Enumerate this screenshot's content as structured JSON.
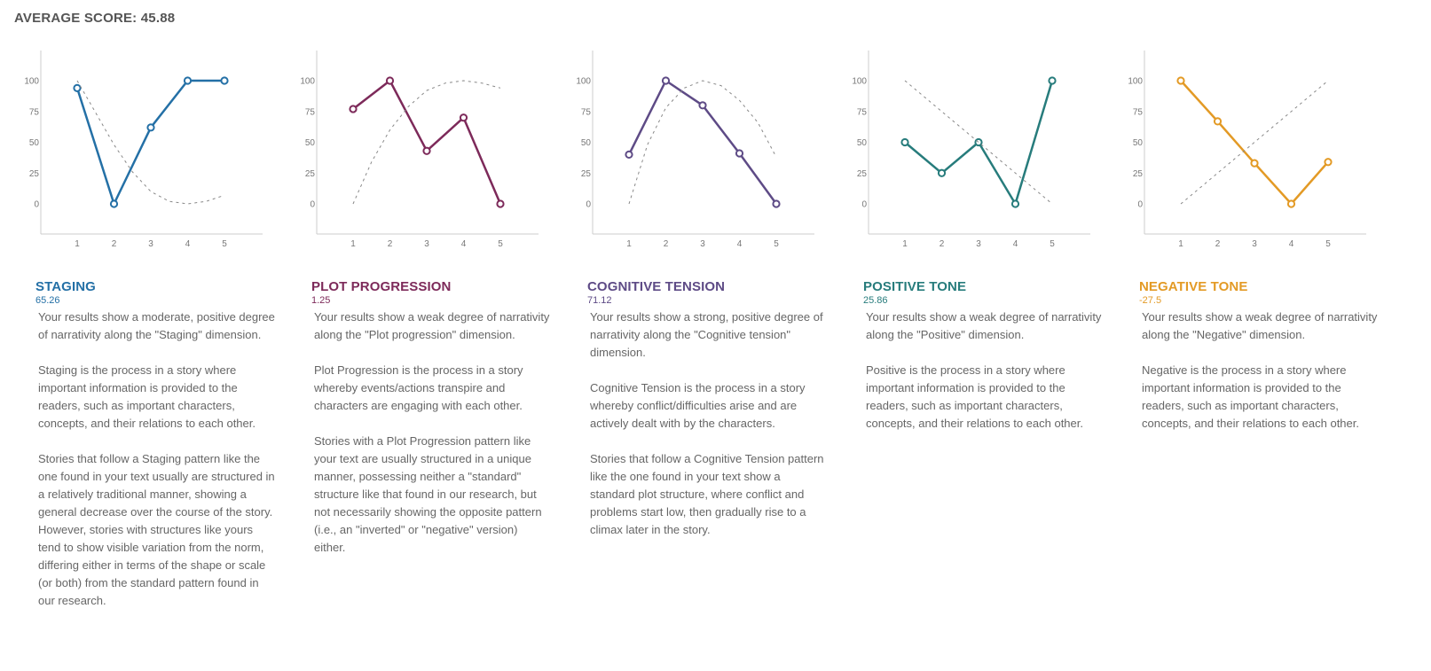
{
  "header": {
    "average_label": "AVERAGE SCORE: 45.88"
  },
  "chart_data": [
    {
      "type": "line",
      "x": [
        1,
        2,
        3,
        4,
        5
      ],
      "series": [
        {
          "values": [
            94,
            0,
            62,
            100,
            100
          ],
          "color": "#2470a6",
          "style": "solid-circles"
        },
        {
          "x": [
            1,
            1.5,
            2,
            2.5,
            3,
            3.5,
            4,
            4.5,
            5
          ],
          "values": [
            100,
            74,
            48,
            26,
            10,
            2,
            0,
            2,
            7
          ],
          "color": "#888888",
          "style": "dashed"
        }
      ],
      "y_ticks": [
        "0",
        "25",
        "50",
        "75",
        "100"
      ],
      "x_ticks": [
        "1",
        "2",
        "3",
        "4",
        "5"
      ],
      "ylim": [
        0,
        100
      ],
      "grid": false
    },
    {
      "type": "line",
      "x": [
        1,
        2,
        3,
        4,
        5
      ],
      "series": [
        {
          "values": [
            77,
            100,
            43,
            70,
            0
          ],
          "color": "#7d2a5a",
          "style": "solid-circles"
        },
        {
          "x": [
            1,
            1.5,
            2,
            2.5,
            3,
            3.5,
            4,
            4.5,
            5
          ],
          "values": [
            0,
            34,
            60,
            79,
            92,
            98,
            100,
            98,
            94
          ],
          "color": "#888888",
          "style": "dashed"
        }
      ],
      "y_ticks": [
        "0",
        "25",
        "50",
        "75",
        "100"
      ],
      "x_ticks": [
        "1",
        "2",
        "3",
        "4",
        "5"
      ],
      "ylim": [
        0,
        100
      ],
      "grid": false
    },
    {
      "type": "line",
      "x": [
        1,
        2,
        3,
        4,
        5
      ],
      "series": [
        {
          "values": [
            40,
            100,
            80,
            41,
            0
          ],
          "color": "#5e4b86",
          "style": "solid-circles"
        },
        {
          "x": [
            1,
            1.5,
            2,
            2.5,
            3,
            3.5,
            4,
            4.5,
            5
          ],
          "values": [
            0,
            48,
            78,
            94,
            100,
            96,
            84,
            66,
            38
          ],
          "color": "#888888",
          "style": "dashed"
        }
      ],
      "y_ticks": [
        "0",
        "25",
        "50",
        "75",
        "100"
      ],
      "x_ticks": [
        "1",
        "2",
        "3",
        "4",
        "5"
      ],
      "ylim": [
        0,
        100
      ],
      "grid": false
    },
    {
      "type": "line",
      "x": [
        1,
        2,
        3,
        4,
        5
      ],
      "series": [
        {
          "values": [
            50,
            25,
            50,
            0,
            100
          ],
          "color": "#277c7c",
          "style": "solid-circles"
        },
        {
          "x": [
            1,
            5
          ],
          "values": [
            100,
            0
          ],
          "color": "#888888",
          "style": "dashed"
        }
      ],
      "y_ticks": [
        "0",
        "25",
        "50",
        "75",
        "100"
      ],
      "x_ticks": [
        "1",
        "2",
        "3",
        "4",
        "5"
      ],
      "ylim": [
        0,
        100
      ],
      "grid": false
    },
    {
      "type": "line",
      "x": [
        1,
        2,
        3,
        4,
        5
      ],
      "series": [
        {
          "values": [
            100,
            67,
            33,
            0,
            34
          ],
          "color": "#e39a25",
          "style": "solid-circles"
        },
        {
          "x": [
            1,
            5
          ],
          "values": [
            0,
            100
          ],
          "color": "#888888",
          "style": "dashed"
        }
      ],
      "y_ticks": [
        "0",
        "25",
        "50",
        "75",
        "100"
      ],
      "x_ticks": [
        "1",
        "2",
        "3",
        "4",
        "5"
      ],
      "ylim": [
        0,
        100
      ],
      "grid": false
    }
  ],
  "panels": [
    {
      "title": "STAGING",
      "score": "65.26",
      "color": "#2470a6",
      "paragraphs": [
        "Your results show a moderate, positive degree of narrativity along the \"Staging\" dimension.",
        "Staging is the process in a story where important information is provided to the readers, such as important characters, concepts, and their relations to each other.",
        "Stories that follow a Staging pattern like the one found in your text usually are structured in a relatively traditional manner, showing a general decrease over the course of the story. However, stories with structures like yours tend to show visible variation from the norm, differing either in terms of the shape or scale (or both) from the standard pattern found in our research."
      ]
    },
    {
      "title": "PLOT PROGRESSION",
      "score": "1.25",
      "color": "#7d2a5a",
      "paragraphs": [
        "Your results show a weak degree of narrativity along the \"Plot progression\" dimension.",
        "Plot Progression is the process in a story whereby events/actions transpire and characters are engaging with each other.",
        "Stories with a Plot Progression pattern like your text are usually structured in a unique manner, possessing neither a \"standard\" structure like that found in our research, but not necessarily showing the opposite pattern (i.e., an \"inverted\" or \"negative\" version) either."
      ]
    },
    {
      "title": "COGNITIVE TENSION",
      "score": "71.12",
      "color": "#5e4b86",
      "paragraphs": [
        "Your results show a strong, positive degree of narrativity along the \"Cognitive tension\" dimension.",
        "Cognitive Tension is the process in a story whereby conflict/difficulties arise and are actively dealt with by the characters.",
        "Stories that follow a Cognitive Tension pattern like the one found in your text show a standard plot structure, where conflict and problems start low, then gradually rise to a climax later in the story."
      ]
    },
    {
      "title": "POSITIVE TONE",
      "score": "25.86",
      "color": "#277c7c",
      "paragraphs": [
        "Your results show a weak degree of narrativity along the \"Positive\" dimension.",
        "Positive is the process in a story where important information is provided to the readers, such as important characters, concepts, and their relations to each other."
      ]
    },
    {
      "title": "NEGATIVE TONE",
      "score": "-27.5",
      "color": "#e39a25",
      "paragraphs": [
        "Your results show a weak degree of narrativity along the \"Negative\" dimension.",
        "Negative is the process in a story where important information is provided to the readers, such as important characters, concepts, and their relations to each other."
      ]
    }
  ]
}
